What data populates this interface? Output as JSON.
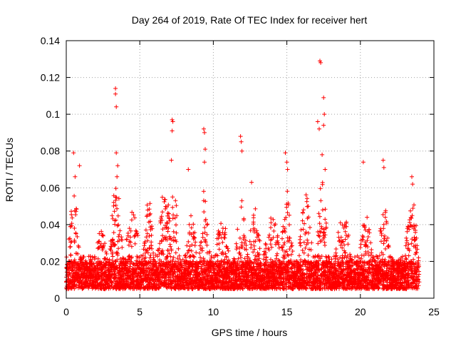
{
  "chart_data": {
    "type": "scatter",
    "title": "Day 264 of 2019, Rate Of TEC Index for receiver hert",
    "xlabel": "GPS time / hours",
    "ylabel": "ROTI / TECUs",
    "xlim": [
      0,
      25
    ],
    "ylim": [
      0,
      0.14
    ],
    "xticks": [
      0,
      5,
      10,
      15,
      20,
      25
    ],
    "xtick_labels": [
      "0",
      "5",
      "10",
      "15",
      "20",
      "25"
    ],
    "yticks": [
      0,
      0.02,
      0.04,
      0.06,
      0.08,
      0.1,
      0.12,
      0.14
    ],
    "ytick_labels": [
      "0",
      "0.02",
      "0.04",
      "0.06",
      "0.08",
      "0.1",
      "0.12",
      "0.14"
    ],
    "grid": true,
    "marker": "+",
    "marker_color": "#ff0000",
    "x_data_range": [
      0,
      24
    ],
    "baseline_band": [
      0.005,
      0.02
    ],
    "notable_points": [
      {
        "x": 0.5,
        "y": 0.079
      },
      {
        "x": 0.9,
        "y": 0.072
      },
      {
        "x": 0.6,
        "y": 0.066
      },
      {
        "x": 3.35,
        "y": 0.114
      },
      {
        "x": 3.35,
        "y": 0.111
      },
      {
        "x": 3.4,
        "y": 0.104
      },
      {
        "x": 3.4,
        "y": 0.079
      },
      {
        "x": 3.5,
        "y": 0.072
      },
      {
        "x": 3.45,
        "y": 0.066
      },
      {
        "x": 7.2,
        "y": 0.097
      },
      {
        "x": 7.25,
        "y": 0.096
      },
      {
        "x": 7.2,
        "y": 0.091
      },
      {
        "x": 7.15,
        "y": 0.075
      },
      {
        "x": 8.3,
        "y": 0.07
      },
      {
        "x": 9.35,
        "y": 0.092
      },
      {
        "x": 9.4,
        "y": 0.09
      },
      {
        "x": 9.45,
        "y": 0.081
      },
      {
        "x": 9.4,
        "y": 0.074
      },
      {
        "x": 11.85,
        "y": 0.088
      },
      {
        "x": 11.9,
        "y": 0.085
      },
      {
        "x": 11.95,
        "y": 0.08
      },
      {
        "x": 12.6,
        "y": 0.063
      },
      {
        "x": 14.9,
        "y": 0.079
      },
      {
        "x": 15.0,
        "y": 0.074
      },
      {
        "x": 15.05,
        "y": 0.07
      },
      {
        "x": 17.25,
        "y": 0.129
      },
      {
        "x": 17.3,
        "y": 0.128
      },
      {
        "x": 17.5,
        "y": 0.109
      },
      {
        "x": 17.55,
        "y": 0.1
      },
      {
        "x": 17.1,
        "y": 0.096
      },
      {
        "x": 17.2,
        "y": 0.092
      },
      {
        "x": 17.5,
        "y": 0.094
      },
      {
        "x": 17.4,
        "y": 0.078
      },
      {
        "x": 17.6,
        "y": 0.07
      },
      {
        "x": 20.2,
        "y": 0.074
      },
      {
        "x": 21.55,
        "y": 0.075
      },
      {
        "x": 21.6,
        "y": 0.071
      },
      {
        "x": 23.5,
        "y": 0.066
      },
      {
        "x": 23.55,
        "y": 0.062
      }
    ],
    "activity_peaks": [
      {
        "center": 0.5,
        "width": 0.4,
        "peak": 0.055
      },
      {
        "center": 2.4,
        "width": 0.5,
        "peak": 0.035
      },
      {
        "center": 3.4,
        "width": 0.45,
        "peak": 0.06
      },
      {
        "center": 4.5,
        "width": 0.6,
        "peak": 0.042
      },
      {
        "center": 5.6,
        "width": 0.4,
        "peak": 0.05
      },
      {
        "center": 6.7,
        "width": 0.6,
        "peak": 0.055
      },
      {
        "center": 7.3,
        "width": 0.35,
        "peak": 0.06
      },
      {
        "center": 8.5,
        "width": 0.5,
        "peak": 0.04
      },
      {
        "center": 9.4,
        "width": 0.35,
        "peak": 0.055
      },
      {
        "center": 10.6,
        "width": 0.6,
        "peak": 0.04
      },
      {
        "center": 11.9,
        "width": 0.4,
        "peak": 0.052
      },
      {
        "center": 12.8,
        "width": 0.5,
        "peak": 0.045
      },
      {
        "center": 14.0,
        "width": 0.7,
        "peak": 0.04
      },
      {
        "center": 15.0,
        "width": 0.4,
        "peak": 0.055
      },
      {
        "center": 16.3,
        "width": 0.5,
        "peak": 0.052
      },
      {
        "center": 17.4,
        "width": 0.4,
        "peak": 0.06
      },
      {
        "center": 18.8,
        "width": 0.6,
        "peak": 0.045
      },
      {
        "center": 20.4,
        "width": 0.5,
        "peak": 0.045
      },
      {
        "center": 21.6,
        "width": 0.4,
        "peak": 0.05
      },
      {
        "center": 23.5,
        "width": 0.5,
        "peak": 0.05
      }
    ]
  }
}
